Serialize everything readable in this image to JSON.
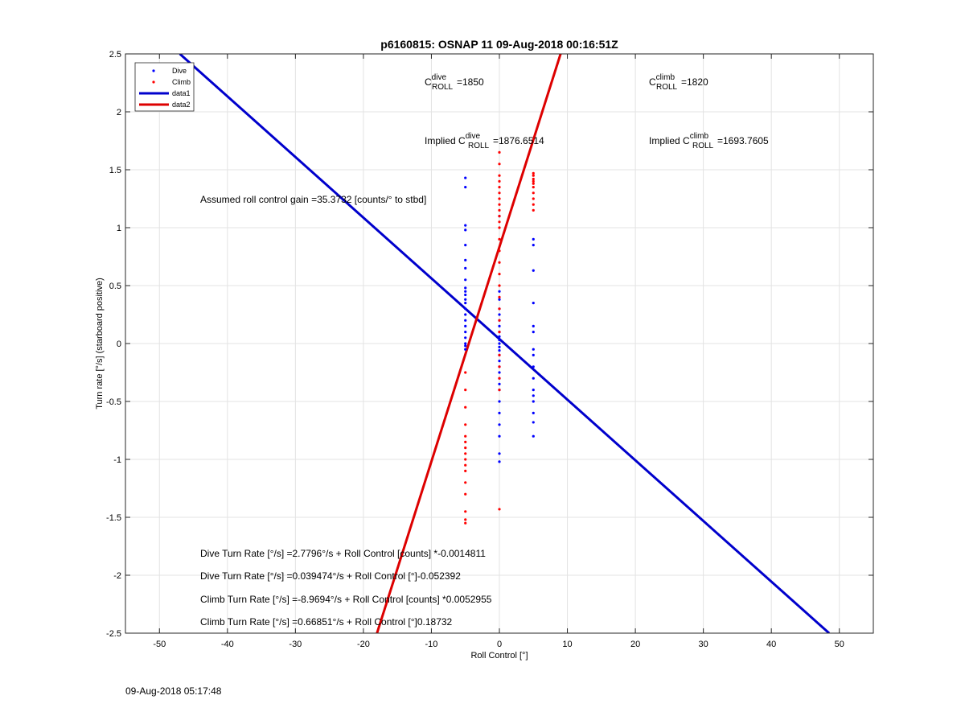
{
  "timestamp": "09-Aug-2018 05:17:48",
  "chart_data": {
    "type": "scatter",
    "title": "p6160815: OSNAP 11 09-Aug-2018 00:16:51Z",
    "xlabel": "Roll Control [°]",
    "ylabel": "Turn rate [°/s] (starboard positive)",
    "xlim": [
      -55,
      55
    ],
    "ylim": [
      -2.5,
      2.5
    ],
    "xticks": [
      -50,
      -40,
      -30,
      -20,
      -10,
      0,
      10,
      20,
      30,
      40,
      50
    ],
    "yticks": [
      -2.5,
      -2,
      -1.5,
      -1,
      -0.5,
      0,
      0.5,
      1,
      1.5,
      2,
      2.5
    ],
    "xtick_labels": [
      "-50",
      "-40",
      "-30",
      "-20",
      "-10",
      "0",
      "10",
      "20",
      "30",
      "40",
      "50"
    ],
    "ytick_labels": [
      "-2.5",
      "-2",
      "-1.5",
      "-1",
      "-0.5",
      "0",
      "0.5",
      "1",
      "1.5",
      "2",
      "2.5"
    ],
    "grid": true,
    "legend_position": "top-left",
    "legend": [
      {
        "label": "Dive",
        "kind": "marker",
        "color": "#0000ff"
      },
      {
        "label": "Climb",
        "kind": "marker",
        "color": "#ff0000"
      },
      {
        "label": "data1",
        "kind": "line",
        "color": "#0000cc"
      },
      {
        "label": "data2",
        "kind": "line",
        "color": "#dd0000"
      }
    ],
    "series": [
      {
        "name": "Dive",
        "kind": "scatter",
        "color": "#0000ff",
        "points": [
          [
            -5,
            1.43
          ],
          [
            -5,
            1.35
          ],
          [
            -5,
            1.02
          ],
          [
            -5,
            0.98
          ],
          [
            -5,
            0.85
          ],
          [
            -5,
            0.72
          ],
          [
            -5,
            0.65
          ],
          [
            -5,
            0.55
          ],
          [
            -5,
            0.48
          ],
          [
            -5,
            0.45
          ],
          [
            -5,
            0.42
          ],
          [
            -5,
            0.38
          ],
          [
            -5,
            0.35
          ],
          [
            -5,
            0.3
          ],
          [
            -5,
            0.25
          ],
          [
            -5,
            0.2
          ],
          [
            -5,
            0.15
          ],
          [
            -5,
            0.1
          ],
          [
            -5,
            0.05
          ],
          [
            -5,
            0.0
          ],
          [
            -5,
            -0.02
          ],
          [
            -5,
            -0.05
          ],
          [
            0,
            1.1
          ],
          [
            0,
            0.45
          ],
          [
            0,
            0.38
          ],
          [
            0,
            0.3
          ],
          [
            0,
            0.25
          ],
          [
            0,
            0.2
          ],
          [
            0,
            0.15
          ],
          [
            0,
            0.1
          ],
          [
            0,
            0.06
          ],
          [
            0,
            0.03
          ],
          [
            0,
            0.0
          ],
          [
            0,
            -0.03
          ],
          [
            0,
            -0.06
          ],
          [
            0,
            -0.1
          ],
          [
            0,
            -0.15
          ],
          [
            0,
            -0.2
          ],
          [
            0,
            -0.25
          ],
          [
            0,
            -0.3
          ],
          [
            0,
            -0.35
          ],
          [
            0,
            -0.4
          ],
          [
            0,
            -0.5
          ],
          [
            0,
            -0.6
          ],
          [
            0,
            -0.7
          ],
          [
            0,
            -0.8
          ],
          [
            0,
            -0.95
          ],
          [
            0,
            -1.02
          ],
          [
            5,
            0.9
          ],
          [
            5,
            0.85
          ],
          [
            5,
            0.63
          ],
          [
            5,
            0.35
          ],
          [
            5,
            0.15
          ],
          [
            5,
            0.1
          ],
          [
            5,
            -0.05
          ],
          [
            5,
            -0.1
          ],
          [
            5,
            -0.2
          ],
          [
            5,
            -0.3
          ],
          [
            5,
            -0.4
          ],
          [
            5,
            -0.45
          ],
          [
            5,
            -0.5
          ],
          [
            5,
            -0.6
          ],
          [
            5,
            -0.68
          ],
          [
            5,
            -0.8
          ]
        ]
      },
      {
        "name": "Climb",
        "kind": "scatter",
        "color": "#ff0000",
        "points": [
          [
            -5,
            -0.25
          ],
          [
            -5,
            -0.4
          ],
          [
            -5,
            -0.55
          ],
          [
            -5,
            -0.7
          ],
          [
            -5,
            -0.8
          ],
          [
            -5,
            -0.85
          ],
          [
            -5,
            -0.9
          ],
          [
            -5,
            -0.95
          ],
          [
            -5,
            -1.0
          ],
          [
            -5,
            -1.05
          ],
          [
            -5,
            -1.1
          ],
          [
            -5,
            -1.2
          ],
          [
            -5,
            -1.3
          ],
          [
            -5,
            -1.45
          ],
          [
            -5,
            -1.52
          ],
          [
            -5,
            -1.55
          ],
          [
            0,
            1.65
          ],
          [
            0,
            1.55
          ],
          [
            0,
            1.45
          ],
          [
            0,
            1.4
          ],
          [
            0,
            1.35
          ],
          [
            0,
            1.3
          ],
          [
            0,
            1.25
          ],
          [
            0,
            1.2
          ],
          [
            0,
            1.15
          ],
          [
            0,
            1.1
          ],
          [
            0,
            1.05
          ],
          [
            0,
            1.0
          ],
          [
            0,
            0.9
          ],
          [
            0,
            0.8
          ],
          [
            0,
            0.7
          ],
          [
            0,
            0.6
          ],
          [
            0,
            0.5
          ],
          [
            0,
            0.4
          ],
          [
            0,
            0.3
          ],
          [
            0,
            0.2
          ],
          [
            0,
            0.1
          ],
          [
            0,
            -0.1
          ],
          [
            0,
            -0.2
          ],
          [
            0,
            -0.3
          ],
          [
            0,
            -0.4
          ],
          [
            0,
            -1.43
          ],
          [
            5,
            1.47
          ],
          [
            5,
            1.45
          ],
          [
            5,
            1.42
          ],
          [
            5,
            1.4
          ],
          [
            5,
            1.38
          ],
          [
            5,
            1.35
          ],
          [
            5,
            1.3
          ],
          [
            5,
            1.25
          ],
          [
            5,
            1.2
          ],
          [
            5,
            1.15
          ]
        ]
      },
      {
        "name": "data1",
        "kind": "line",
        "color": "#0000cc",
        "points": [
          [
            -47,
            2.5
          ],
          [
            48.5,
            -2.5
          ]
        ]
      },
      {
        "name": "data2",
        "kind": "line",
        "color": "#dd0000",
        "points": [
          [
            -18,
            -2.5
          ],
          [
            9,
            2.5
          ]
        ]
      }
    ],
    "annotations": {
      "c_roll_dive": {
        "base": "C",
        "sup": "dive",
        "sub": "ROLL",
        "value": "=1850"
      },
      "c_roll_climb": {
        "base": "C",
        "sup": "climb",
        "sub": "ROLL",
        "value": "=1820"
      },
      "implied_dive": {
        "prefix": "Implied ",
        "base": "C",
        "sup": "dive",
        "sub": "ROLL",
        "value": "=1876.6514"
      },
      "implied_climb": {
        "prefix": "Implied ",
        "base": "C",
        "sup": "climb",
        "sub": "ROLL",
        "value": "=1693.7605"
      },
      "gain": "Assumed roll control gain =35.3732 [counts/° to stbd]",
      "eq1": "Dive Turn Rate [°/s] =2.7796°/s + Roll Control [counts] *-0.0014811",
      "eq2": "Dive Turn Rate [°/s] =0.039474°/s + Roll Control [°]-0.052392",
      "eq3": "Climb Turn Rate [°/s] =-8.9694°/s + Roll Control [counts] *0.0052955",
      "eq4": "Climb Turn Rate [°/s] =0.66851°/s + Roll Control [°]0.18732"
    }
  }
}
